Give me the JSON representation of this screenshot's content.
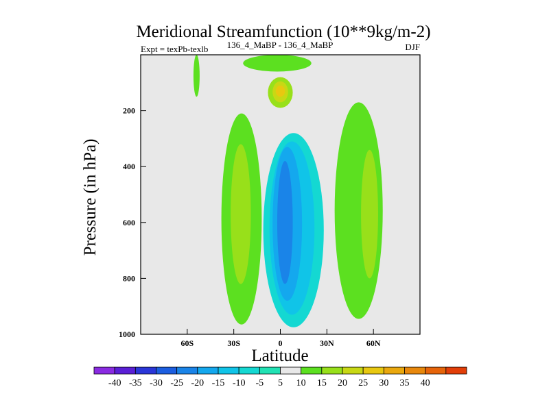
{
  "chart_data": {
    "type": "heatmap",
    "title": "Meridional Streamfunction (10**9kg/m-2)",
    "subtitle_left": "Expt = texPb-texlb",
    "subtitle_center": "136_4_MaBP - 136_4_MaBP",
    "subtitle_right": "DJF",
    "xlabel": "Latitude",
    "ylabel": "Pressure (in hPa)",
    "xlim": [
      -90,
      90
    ],
    "ylim": [
      1000,
      0
    ],
    "y_reversed": true,
    "x_ticks": [
      {
        "value": -60,
        "label": "60S"
      },
      {
        "value": -30,
        "label": "30S"
      },
      {
        "value": 0,
        "label": "0"
      },
      {
        "value": 30,
        "label": "30N"
      },
      {
        "value": 60,
        "label": "60N"
      }
    ],
    "y_ticks": [
      {
        "value": 200,
        "label": "200"
      },
      {
        "value": 400,
        "label": "400"
      },
      {
        "value": 600,
        "label": "600"
      },
      {
        "value": 800,
        "label": "800"
      },
      {
        "value": 1000,
        "label": "1000"
      }
    ],
    "colorbar": {
      "levels": [
        -40,
        -35,
        -30,
        -25,
        -20,
        -15,
        -10,
        -5,
        5,
        10,
        15,
        20,
        25,
        30,
        35,
        40
      ],
      "labels": [
        "-40",
        "-35",
        "-30",
        "-25",
        "-20",
        "-15",
        "-10",
        "-5",
        "5",
        "10",
        "15",
        "20",
        "25",
        "30",
        "35",
        "40"
      ],
      "colors": [
        "#8a2be2",
        "#5a1fd6",
        "#2a36d8",
        "#1c5ee0",
        "#1a84e8",
        "#14a8ee",
        "#10c4e8",
        "#14d8d2",
        "#21e2b4",
        "#e8e8e8",
        "#5ce020",
        "#98e01a",
        "#c8d814",
        "#e8c810",
        "#eaa80e",
        "#e8880c",
        "#e6640a",
        "#e23e08"
      ]
    },
    "regions": [
      {
        "level": 10,
        "color": "#5ce020",
        "lat_min": -38,
        "lat_max": -12,
        "p_min": 210,
        "p_max": 965
      },
      {
        "level": 15,
        "color": "#98e01a",
        "lat_min": -32,
        "lat_max": -19,
        "p_min": 320,
        "p_max": 820
      },
      {
        "level": 10,
        "color": "#5ce020",
        "lat_min": -24,
        "lat_max": 20,
        "p_min": 0,
        "p_max": 60
      },
      {
        "level": 15,
        "color": "#98e01a",
        "lat_min": -8,
        "lat_max": 8,
        "p_min": 80,
        "p_max": 190
      },
      {
        "level": 20,
        "color": "#c8d814",
        "lat_min": -5,
        "lat_max": 5,
        "p_min": 95,
        "p_max": 170
      },
      {
        "level": 25,
        "color": "#e8c810",
        "lat_min": -3,
        "lat_max": 3,
        "p_min": 110,
        "p_max": 150
      },
      {
        "level": -5,
        "color": "#14d8d2",
        "lat_min": -11,
        "lat_max": 28,
        "p_min": 280,
        "p_max": 975
      },
      {
        "level": -10,
        "color": "#10c4e8",
        "lat_min": -7,
        "lat_max": 22,
        "p_min": 310,
        "p_max": 930
      },
      {
        "level": -15,
        "color": "#14a8ee",
        "lat_min": -5,
        "lat_max": 14,
        "p_min": 330,
        "p_max": 880
      },
      {
        "level": -20,
        "color": "#1a84e8",
        "lat_min": -2,
        "lat_max": 8,
        "p_min": 380,
        "p_max": 820
      },
      {
        "level": 10,
        "color": "#5ce020",
        "lat_min": 35,
        "lat_max": 66,
        "p_min": 170,
        "p_max": 945
      },
      {
        "level": 15,
        "color": "#98e01a",
        "lat_min": 52,
        "lat_max": 63,
        "p_min": 340,
        "p_max": 800
      },
      {
        "level": 10,
        "color": "#5ce020",
        "lat_min": -56,
        "lat_max": -52,
        "p_min": 0,
        "p_max": 150
      }
    ]
  }
}
